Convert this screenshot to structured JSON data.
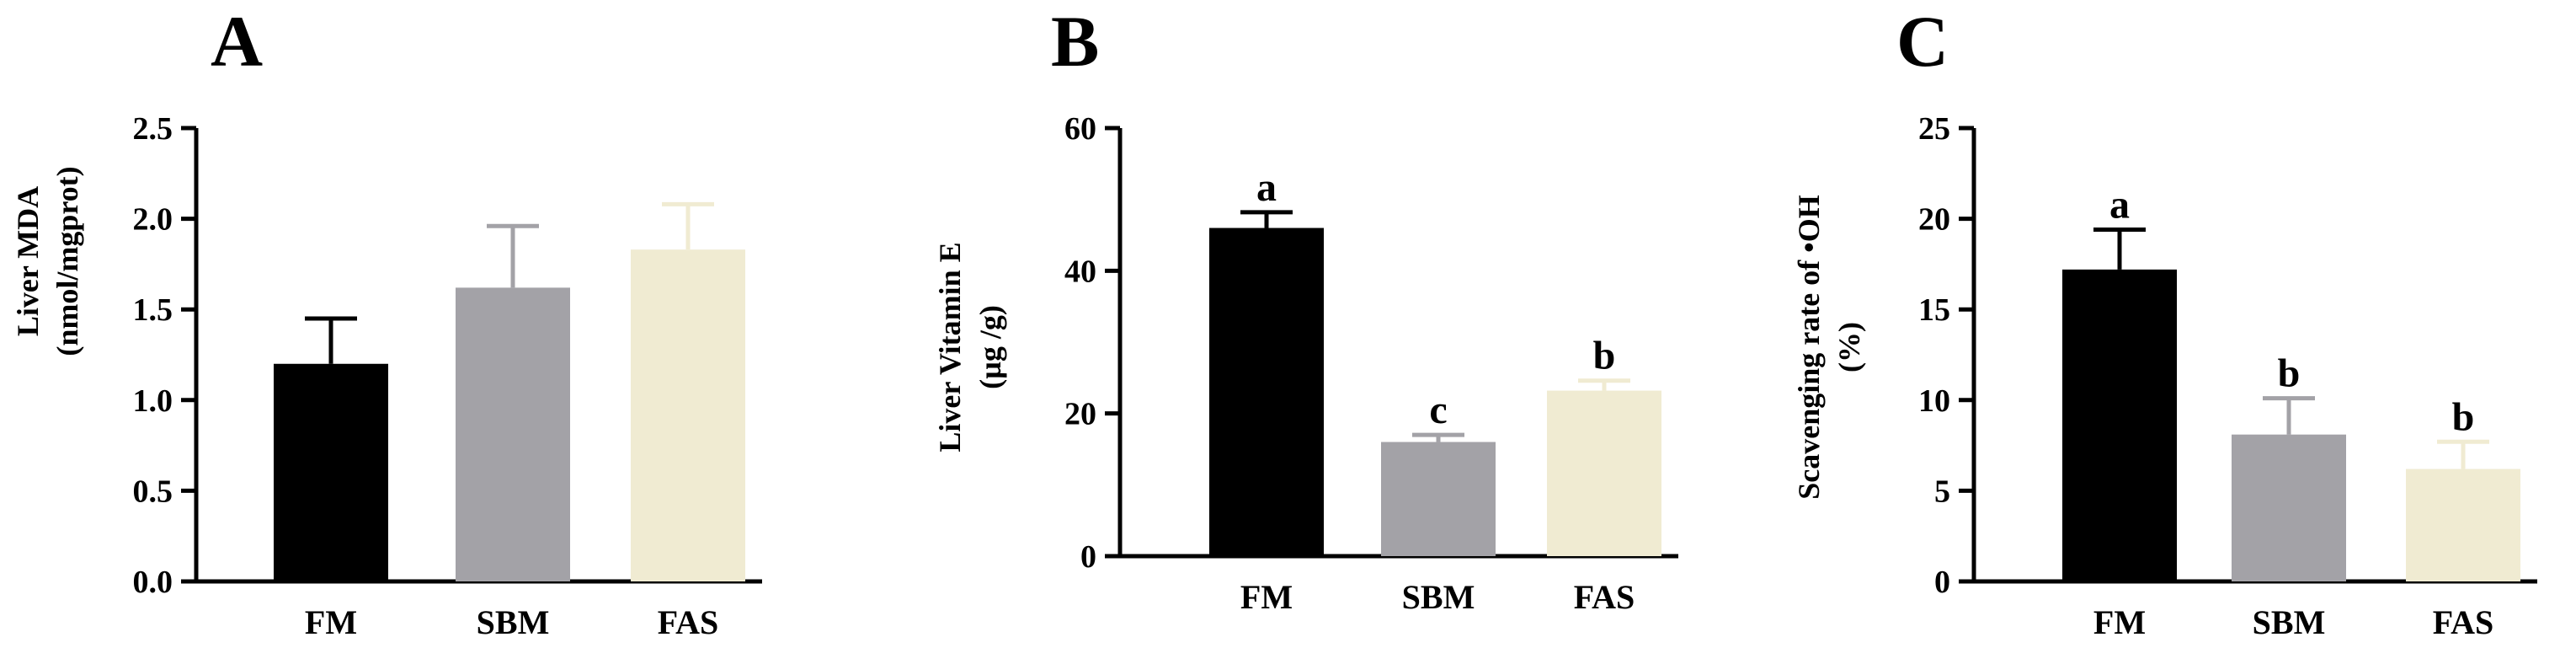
{
  "chart_data": [
    {
      "panel": "A",
      "type": "bar",
      "categories": [
        "FM",
        "SBM",
        "FAS"
      ],
      "values": [
        1.2,
        1.62,
        1.83
      ],
      "errors": [
        0.25,
        0.34,
        0.25
      ],
      "significance": [],
      "ylabel_lines": [
        "Liver MDA",
        "(nmol/mgprot)"
      ],
      "ylim": [
        0,
        2.5
      ],
      "yticks": [
        "0.0",
        "0.5",
        "1.0",
        "1.5",
        "2.0",
        "2.5"
      ],
      "colors": [
        "#000000",
        "#a3a2a7",
        "#f0ebd2"
      ],
      "error_colors": [
        "#000000",
        "#a3a2a7",
        "#f0ebd2"
      ]
    },
    {
      "panel": "B",
      "type": "bar",
      "categories": [
        "FM",
        "SBM",
        "FAS"
      ],
      "values": [
        46.0,
        16.0,
        23.2
      ],
      "errors": [
        2.2,
        1.0,
        1.4
      ],
      "significance": [
        "a",
        "c",
        "b"
      ],
      "ylabel_lines": [
        "Liver Vitamin E",
        "(µg /g)"
      ],
      "ylim": [
        0,
        60
      ],
      "yticks": [
        "0",
        "20",
        "40",
        "60"
      ],
      "colors": [
        "#000000",
        "#a3a2a7",
        "#f0ebd2"
      ],
      "error_colors": [
        "#000000",
        "#a3a2a7",
        "#f0ebd2"
      ]
    },
    {
      "panel": "C",
      "type": "bar",
      "categories": [
        "FM",
        "SBM",
        "FAS"
      ],
      "values": [
        17.2,
        8.1,
        6.2
      ],
      "errors": [
        2.2,
        2.0,
        1.5
      ],
      "significance": [
        "a",
        "b",
        "b"
      ],
      "ylabel_lines": [
        "Scavenging rate of •OH",
        "(%)"
      ],
      "ylim": [
        0,
        25
      ],
      "yticks": [
        "0",
        "5",
        "10",
        "15",
        "20",
        "25"
      ],
      "colors": [
        "#000000",
        "#a3a2a7",
        "#f0ebd2"
      ],
      "error_colors": [
        "#000000",
        "#a3a2a7",
        "#f0ebd2"
      ]
    }
  ]
}
